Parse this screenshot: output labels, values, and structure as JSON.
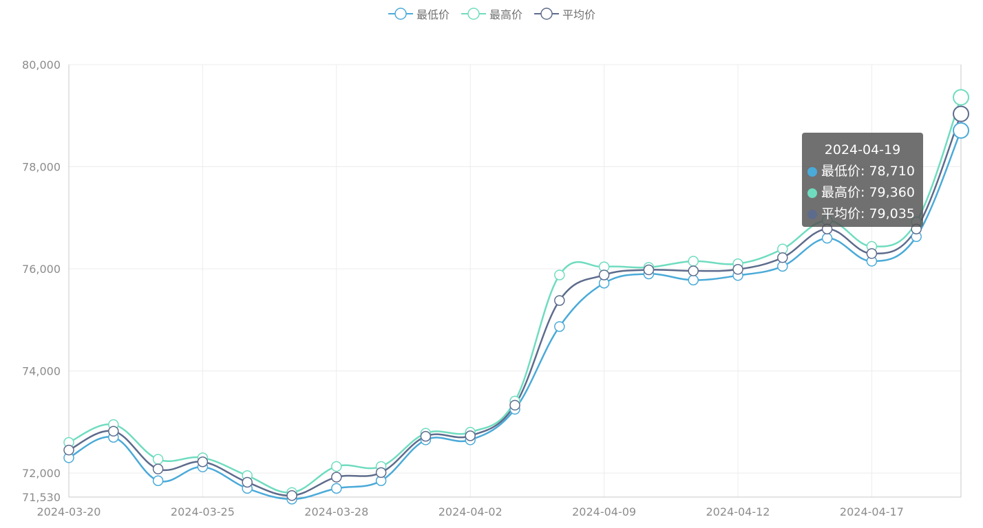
{
  "legend": {
    "items": [
      {
        "label": "最低价",
        "color": "#4aaad8"
      },
      {
        "label": "最高价",
        "color": "#6fdcbf"
      },
      {
        "label": "平均价",
        "color": "#5d6b8c"
      }
    ]
  },
  "tooltip": {
    "title": "2024-04-19",
    "rows": [
      {
        "text": "最低价: 78,710",
        "color": "#4aaad8"
      },
      {
        "text": "最高价: 79,360",
        "color": "#6fdcbf"
      },
      {
        "text": "平均价: 79,035",
        "color": "#5d6b8c"
      }
    ]
  },
  "chart_data": {
    "type": "line",
    "x": [
      "2024-03-20",
      "2024-03-21",
      "2024-03-22",
      "2024-03-25",
      "2024-03-26",
      "2024-03-27",
      "2024-03-28",
      "2024-03-29",
      "2024-04-01",
      "2024-04-02",
      "2024-04-03",
      "2024-04-08",
      "2024-04-09",
      "2024-04-10",
      "2024-04-11",
      "2024-04-12",
      "2024-04-15",
      "2024-04-16",
      "2024-04-17",
      "2024-04-18",
      "2024-04-19"
    ],
    "x_tick_labels": [
      "2024-03-20",
      "2024-03-25",
      "2024-03-28",
      "2024-04-02",
      "2024-04-09",
      "2024-04-12",
      "2024-04-17"
    ],
    "y_ticks": [
      71530,
      72000,
      74000,
      76000,
      78000,
      80000
    ],
    "y_tick_labels": [
      "71,530",
      "72,000",
      "74,000",
      "76,000",
      "78,000",
      "80,000"
    ],
    "ylim": [
      71530,
      80000
    ],
    "grid": true,
    "legend_position": "top-center",
    "series": [
      {
        "name": "最低价",
        "color": "#4aaad8",
        "values": [
          72300,
          72700,
          71850,
          72120,
          71700,
          71490,
          71700,
          71850,
          72650,
          72650,
          73250,
          74870,
          75720,
          75900,
          75780,
          75870,
          76050,
          76600,
          76150,
          76630,
          78710
        ]
      },
      {
        "name": "最高价",
        "color": "#6fdcbf",
        "values": [
          72600,
          72950,
          72270,
          72300,
          71950,
          71620,
          72130,
          72130,
          72780,
          72800,
          73410,
          75880,
          76040,
          76030,
          76150,
          76100,
          76390,
          76950,
          76440,
          76920,
          79360
        ]
      },
      {
        "name": "平均价",
        "color": "#5d6b8c",
        "values": [
          72450,
          72820,
          72080,
          72220,
          71820,
          71560,
          71920,
          72010,
          72720,
          72730,
          73330,
          75380,
          75880,
          75980,
          75960,
          75990,
          76220,
          76780,
          76300,
          76780,
          79035
        ]
      }
    ],
    "highlighted_index": 20
  }
}
